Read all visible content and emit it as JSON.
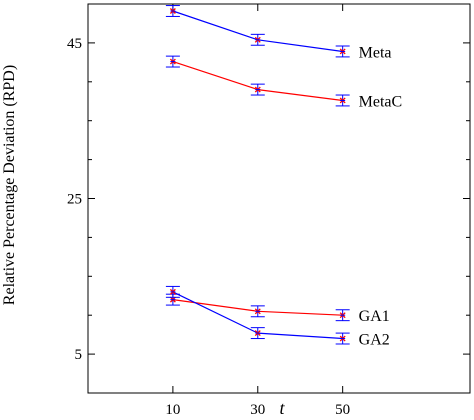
{
  "chart_data": {
    "type": "line",
    "xlabel": "t",
    "ylabel": "Relative Percentage Deviation (RPD)",
    "x": [
      10,
      30,
      50
    ],
    "xlim": [
      -10,
      80
    ],
    "ylim": [
      0,
      50
    ],
    "x_ticks": [
      "10",
      "30",
      "50"
    ],
    "y_ticks": [
      "5",
      "25",
      "45"
    ],
    "grid": false,
    "series": [
      {
        "name": "Meta",
        "color": "#0000ff",
        "values": [
          49.1,
          45.4,
          43.9
        ],
        "errors": [
          0.7,
          0.7,
          0.7
        ]
      },
      {
        "name": "MetaC",
        "color": "#ff0000",
        "values": [
          42.6,
          39.0,
          37.6
        ],
        "errors": [
          0.7,
          0.7,
          0.7
        ]
      },
      {
        "name": "GA1",
        "color": "#ff0000",
        "values": [
          12.0,
          10.5,
          10.0
        ],
        "errors": [
          0.7,
          0.7,
          0.7
        ]
      },
      {
        "name": "GA2",
        "color": "#0000ff",
        "values": [
          13.0,
          7.7,
          7.0
        ],
        "errors": [
          0.7,
          0.7,
          0.7
        ]
      }
    ]
  }
}
